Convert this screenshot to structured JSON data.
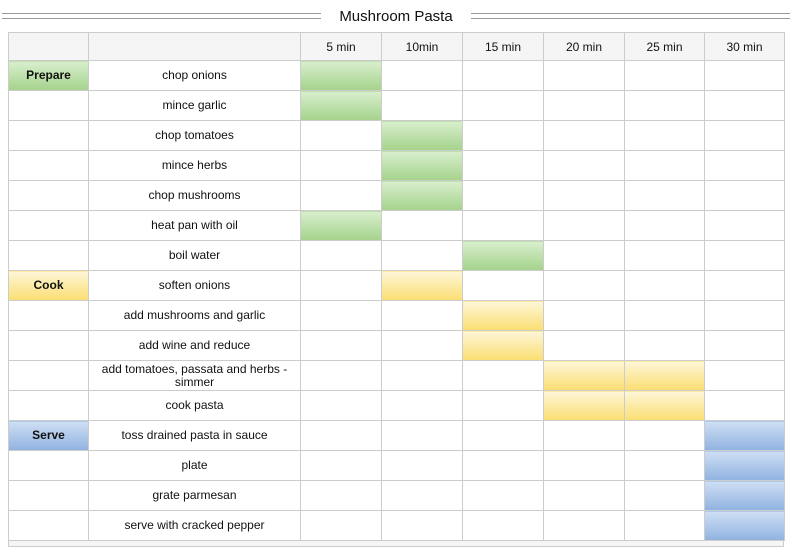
{
  "chart_data": {
    "type": "table",
    "subtype": "gantt",
    "title": "Mushroom Pasta",
    "columns": [
      "5 min",
      "10min",
      "15 min",
      "20 min",
      "25 min",
      "30 min"
    ],
    "rows": [
      {
        "phase": "Prepare",
        "phase_color": "green",
        "task": "chop onions",
        "bar_color": "green",
        "bar_columns": [
          0
        ]
      },
      {
        "task": "mince garlic",
        "bar_color": "green",
        "bar_columns": [
          0
        ]
      },
      {
        "task": "chop tomatoes",
        "bar_color": "green",
        "bar_columns": [
          1
        ]
      },
      {
        "task": "mince herbs",
        "bar_color": "green",
        "bar_columns": [
          1
        ]
      },
      {
        "task": "chop mushrooms",
        "bar_color": "green",
        "bar_columns": [
          1
        ]
      },
      {
        "task": "heat pan with oil",
        "bar_color": "green",
        "bar_columns": [
          0
        ]
      },
      {
        "task": "boil water",
        "bar_color": "green",
        "bar_columns": [
          2
        ]
      },
      {
        "phase": "Cook",
        "phase_color": "yellow",
        "task": "soften onions",
        "bar_color": "yellow",
        "bar_columns": [
          1
        ]
      },
      {
        "task": "add mushrooms and garlic",
        "bar_color": "yellow",
        "bar_columns": [
          2
        ]
      },
      {
        "task": "add wine and reduce",
        "bar_color": "yellow",
        "bar_columns": [
          2
        ]
      },
      {
        "task": "add tomatoes, passata and herbs - simmer",
        "bar_color": "yellow",
        "bar_columns": [
          3,
          4
        ]
      },
      {
        "task": "cook pasta",
        "bar_color": "yellow",
        "bar_columns": [
          3,
          4
        ]
      },
      {
        "phase": "Serve",
        "phase_color": "blue",
        "task": "toss drained pasta in sauce",
        "bar_color": "blue",
        "bar_columns": [
          5
        ]
      },
      {
        "task": "plate",
        "bar_color": "blue",
        "bar_columns": [
          5
        ]
      },
      {
        "task": "grate parmesan",
        "bar_color": "blue",
        "bar_columns": [
          5
        ]
      },
      {
        "task": "serve with cracked pepper",
        "bar_color": "blue",
        "bar_columns": [
          5
        ]
      }
    ]
  },
  "colors": {
    "green_top": "#d9efce",
    "green_bottom": "#a4d28b",
    "yellow_top": "#fdf6d8",
    "yellow_bottom": "#fbde72",
    "blue_top": "#cfdff4",
    "blue_bottom": "#90b2e0",
    "header_bg": "#f5f5f5",
    "grid_border": "#cccccc",
    "rule_color": "#999999"
  }
}
